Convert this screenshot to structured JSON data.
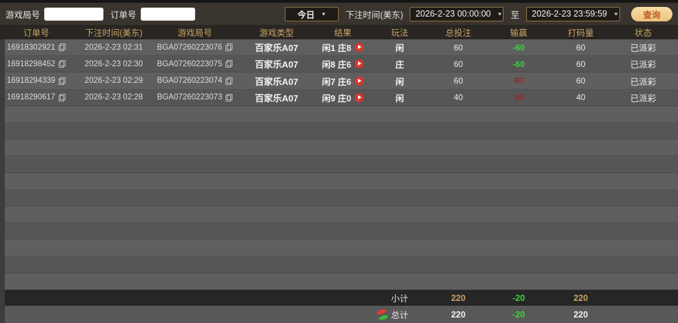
{
  "icons": {
    "chevron_down": "▼"
  },
  "colors": {
    "accent_gold": "#c9a365",
    "win_green": "#3bd33b",
    "loss_red": "#a32424",
    "button_text": "#c55a20"
  },
  "filters": {
    "game_round_label": "游戏局号",
    "order_no_label": "订单号",
    "game_round_value": "",
    "order_no_value": "",
    "range_selected": "今日",
    "bet_time_label": "下注时间(美东)",
    "start_time": "2026-2-23 00:00:00",
    "to_label": "至",
    "end_time": "2026-2-23 23:59:59",
    "query_button": "查询"
  },
  "table": {
    "headers": [
      "订单号",
      "下注时间(美东)",
      "游戏局号",
      "游戏类型",
      "结果",
      "玩法",
      "总投注",
      "输赢",
      "打码量",
      "状态"
    ],
    "rows": [
      {
        "order_no": "16918302921",
        "bet_time": "2026-2-23 02:31",
        "round_no": "BGA07260223076",
        "game_type": "百家乐A07",
        "result": "闲1 庄8",
        "play": "闲",
        "total_bet": "60",
        "win_loss": "-60",
        "win_loss_color": "green",
        "turnover": "60",
        "status": "已派彩"
      },
      {
        "order_no": "16918298452",
        "bet_time": "2026-2-23 02:30",
        "round_no": "BGA07260223075",
        "game_type": "百家乐A07",
        "result": "闲8 庄6",
        "play": "庄",
        "total_bet": "60",
        "win_loss": "-60",
        "win_loss_color": "green",
        "turnover": "60",
        "status": "已派彩"
      },
      {
        "order_no": "16918294339",
        "bet_time": "2026-2-23 02:29",
        "round_no": "BGA07260223074",
        "game_type": "百家乐A07",
        "result": "闲7 庄6",
        "play": "闲",
        "total_bet": "60",
        "win_loss": "60",
        "win_loss_color": "red",
        "turnover": "60",
        "status": "已派彩"
      },
      {
        "order_no": "16918290617",
        "bet_time": "2026-2-23 02:28",
        "round_no": "BGA07260223073",
        "game_type": "百家乐A07",
        "result": "闲9 庄0",
        "play": "闲",
        "total_bet": "40",
        "win_loss": "40",
        "win_loss_color": "red",
        "turnover": "40",
        "status": "已派彩"
      }
    ],
    "subtotal": {
      "label": "小计",
      "total_bet": "220",
      "win_loss": "-20",
      "turnover": "220"
    },
    "total": {
      "label": "总计",
      "total_bet": "220",
      "win_loss": "-20",
      "turnover": "220"
    }
  }
}
